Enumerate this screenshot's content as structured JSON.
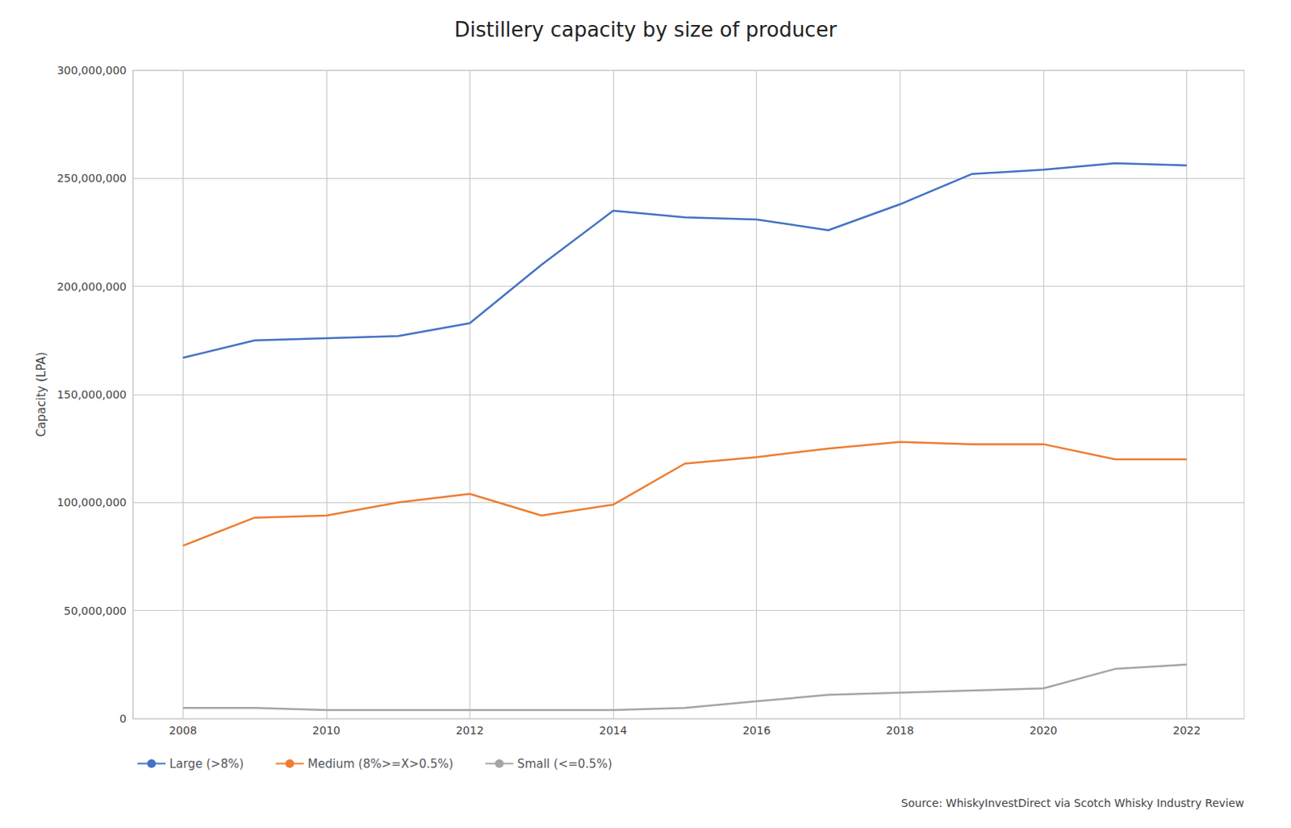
{
  "chart_data": {
    "type": "line",
    "title": "Distillery capacity by size of producer",
    "ylabel": "Capacity (LPA)",
    "annotations": [
      "Source: WhiskyInvestDirect via Scotch Whisky Industry Review"
    ],
    "x": [
      2008,
      2009,
      2010,
      2011,
      2012,
      2013,
      2014,
      2015,
      2016,
      2017,
      2018,
      2019,
      2020,
      2021,
      2022
    ],
    "series": [
      {
        "name": "Large (>8%)",
        "color": "#4472C4",
        "values": [
          167000000,
          175000000,
          176000000,
          177000000,
          183000000,
          210000000,
          235000000,
          232000000,
          231000000,
          226000000,
          238000000,
          252000000,
          254000000,
          257000000,
          256000000
        ]
      },
      {
        "name": "Medium (8%>=X>0.5%)",
        "color": "#ED7D31",
        "values": [
          80000000,
          93000000,
          94000000,
          100000000,
          104000000,
          94000000,
          99000000,
          118000000,
          121000000,
          125000000,
          128000000,
          127000000,
          127000000,
          120000000,
          120000000
        ]
      },
      {
        "name": "Small (<=0.5%)",
        "color": "#A5A5A5",
        "values": [
          5000000,
          5000000,
          4000000,
          4000000,
          4000000,
          4000000,
          4000000,
          5000000,
          8000000,
          11000000,
          12000000,
          13000000,
          14000000,
          23000000,
          25000000
        ]
      }
    ],
    "xlim": [
      2007.3,
      2022.8
    ],
    "xticks": [
      2008,
      2010,
      2012,
      2014,
      2016,
      2018,
      2020,
      2022
    ],
    "ylim": [
      0,
      300000000
    ],
    "yticks": [
      0,
      {
        "value": 50000000,
        "label": "50,000,000"
      },
      {
        "value": 100000000,
        "label": "100,000,000"
      },
      {
        "value": 150000000,
        "label": "150,000,000"
      },
      {
        "value": 200000000,
        "label": "200,000,000"
      },
      {
        "value": 250000000,
        "label": "250,000,000"
      },
      {
        "value": 300000000,
        "label": "300,000,000"
      }
    ],
    "grid": true,
    "legend": "bottom"
  }
}
